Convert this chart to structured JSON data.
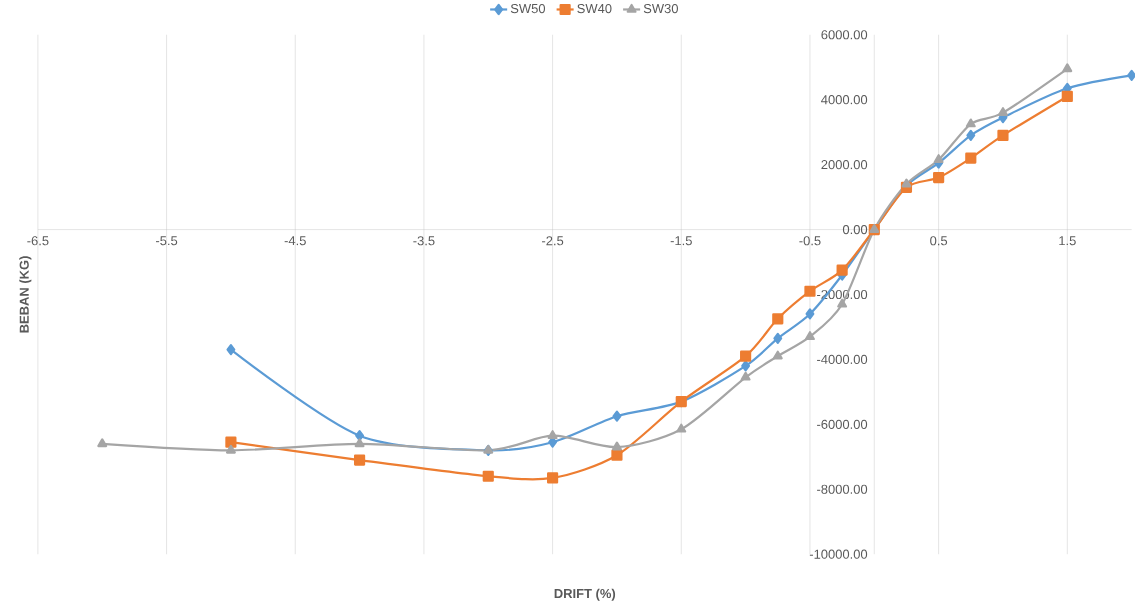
{
  "chart_data": {
    "type": "line",
    "xlabel": "DRIFT (%)",
    "ylabel": "BEBAN (KG)",
    "xlim": [
      -6.5,
      2
    ],
    "ylim": [
      -10000,
      6000
    ],
    "xticks": [
      -6.5,
      -5.5,
      -4.5,
      -3.5,
      -2.5,
      -1.5,
      -0.5,
      0.5,
      1.5
    ],
    "yticks": [
      {
        "value": -10000,
        "label": "-10000.00"
      },
      {
        "value": -8000,
        "label": "-8000.00"
      },
      {
        "value": -6000,
        "label": "-6000.00"
      },
      {
        "value": -4000,
        "label": "-4000.00"
      },
      {
        "value": -2000,
        "label": "-2000.00"
      },
      {
        "value": 0,
        "label": "0.00"
      },
      {
        "value": 2000,
        "label": "2000.00"
      },
      {
        "value": 4000,
        "label": "4000.00"
      },
      {
        "value": 6000,
        "label": "6000.00"
      }
    ],
    "grid": "x",
    "legend": "top",
    "series": [
      {
        "name": "SW50",
        "color": "#5b9bd5",
        "marker": "diamond",
        "x": [
          -5,
          -4,
          -3,
          -2.5,
          -2,
          -1.5,
          -1,
          -0.75,
          -0.5,
          -0.25,
          0,
          0.25,
          0.5,
          0.75,
          1,
          1.5,
          2
        ],
        "values": [
          -3700,
          -6350,
          -6800,
          -6550,
          -5750,
          -5300,
          -4200,
          -3350,
          -2600,
          -1400,
          0,
          1350,
          2050,
          2900,
          3450,
          4350,
          4750
        ]
      },
      {
        "name": "SW40",
        "color": "#ed7d31",
        "marker": "square",
        "x": [
          -5,
          -4,
          -3,
          -2.5,
          -2,
          -1.5,
          -1,
          -0.75,
          -0.5,
          -0.25,
          0,
          0.25,
          0.5,
          0.75,
          1,
          1.5
        ],
        "values": [
          -6550,
          -7100,
          -7600,
          -7650,
          -6950,
          -5300,
          -3900,
          -2750,
          -1900,
          -1250,
          0,
          1300,
          1600,
          2200,
          2900,
          4100
        ]
      },
      {
        "name": "SW30",
        "color": "#a5a5a5",
        "marker": "triangle",
        "x": [
          -6,
          -5,
          -4,
          -3,
          -2.5,
          -2,
          -1.5,
          -1,
          -0.75,
          -0.5,
          -0.25,
          0,
          0.25,
          0.5,
          0.75,
          1,
          1.5
        ],
        "values": [
          -6600,
          -6800,
          -6600,
          -6800,
          -6350,
          -6700,
          -6150,
          -4550,
          -3900,
          -3300,
          -2300,
          0,
          1400,
          2150,
          3250,
          3600,
          4950
        ]
      }
    ]
  }
}
